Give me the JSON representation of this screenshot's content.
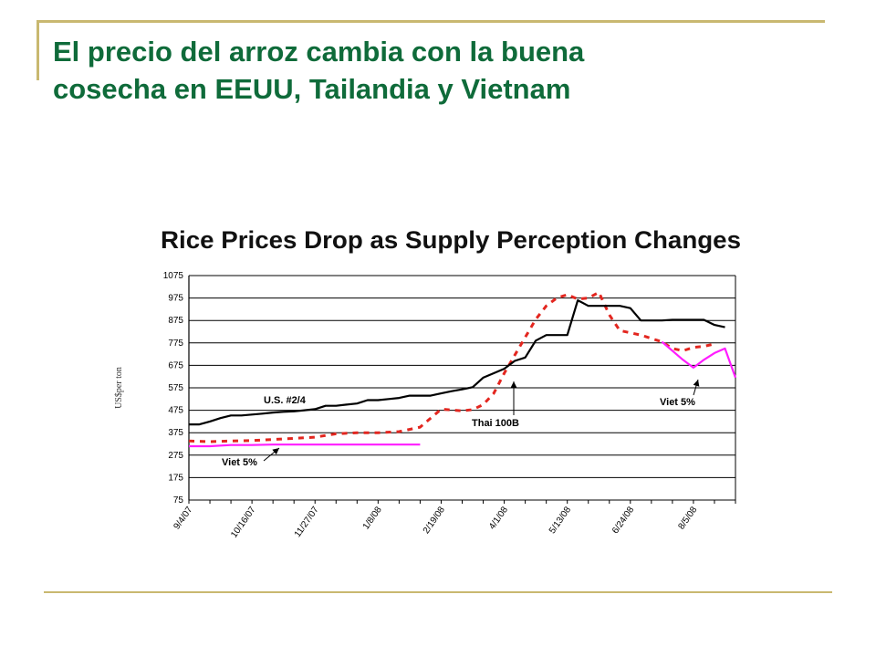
{
  "slide": {
    "title_line1": "El precio del arroz cambia con la buena",
    "title_line2": "cosecha en EEUU, Tailandia y Vietnam"
  },
  "chart_data": {
    "type": "line",
    "title": "Rice Prices Drop as Supply Perception Changes",
    "ylabel": "US$per ton",
    "ylim": [
      75,
      1075
    ],
    "yticks": [
      75,
      175,
      275,
      375,
      475,
      575,
      675,
      775,
      875,
      975,
      1075
    ],
    "xlim": [
      "2007-09-04",
      "2008-09-02"
    ],
    "xticks": [
      "9/4/07",
      "10/16/07",
      "11/27/07",
      "1/8/08",
      "2/19/08",
      "4/1/08",
      "5/13/08",
      "6/24/08",
      "8/5/08"
    ],
    "xtick_dates": [
      "2007-09-04",
      "2007-10-16",
      "2007-11-27",
      "2008-01-08",
      "2008-02-19",
      "2008-04-01",
      "2008-05-13",
      "2008-06-24",
      "2008-08-05"
    ],
    "grid": "horizontal",
    "series": [
      {
        "name": "U.S. #2/4",
        "color": "#000000",
        "style": "solid",
        "points": [
          [
            "2007-09-04",
            412
          ],
          [
            "2007-09-11",
            412
          ],
          [
            "2007-09-18",
            425
          ],
          [
            "2007-09-25",
            440
          ],
          [
            "2007-10-02",
            452
          ],
          [
            "2007-10-09",
            452
          ],
          [
            "2007-10-16",
            456
          ],
          [
            "2007-10-23",
            460
          ],
          [
            "2007-10-30",
            465
          ],
          [
            "2007-11-06",
            468
          ],
          [
            "2007-11-13",
            470
          ],
          [
            "2007-11-20",
            475
          ],
          [
            "2007-11-27",
            480
          ],
          [
            "2007-12-04",
            495
          ],
          [
            "2007-12-11",
            495
          ],
          [
            "2007-12-18",
            500
          ],
          [
            "2007-12-25",
            505
          ],
          [
            "2008-01-01",
            520
          ],
          [
            "2008-01-08",
            520
          ],
          [
            "2008-01-15",
            525
          ],
          [
            "2008-01-22",
            530
          ],
          [
            "2008-01-29",
            540
          ],
          [
            "2008-02-05",
            540
          ],
          [
            "2008-02-12",
            540
          ],
          [
            "2008-02-19",
            550
          ],
          [
            "2008-02-26",
            560
          ],
          [
            "2008-03-04",
            568
          ],
          [
            "2008-03-11",
            578
          ],
          [
            "2008-03-18",
            620
          ],
          [
            "2008-03-25",
            640
          ],
          [
            "2008-04-01",
            660
          ],
          [
            "2008-04-08",
            695
          ],
          [
            "2008-04-15",
            710
          ],
          [
            "2008-04-22",
            785
          ],
          [
            "2008-04-29",
            810
          ],
          [
            "2008-05-06",
            810
          ],
          [
            "2008-05-13",
            810
          ],
          [
            "2008-05-20",
            965
          ],
          [
            "2008-05-27",
            940
          ],
          [
            "2008-06-03",
            940
          ],
          [
            "2008-06-10",
            940
          ],
          [
            "2008-06-17",
            940
          ],
          [
            "2008-06-24",
            930
          ],
          [
            "2008-07-01",
            875
          ],
          [
            "2008-07-08",
            875
          ],
          [
            "2008-07-15",
            875
          ],
          [
            "2008-07-22",
            878
          ],
          [
            "2008-07-29",
            878
          ],
          [
            "2008-08-05",
            878
          ],
          [
            "2008-08-12",
            878
          ],
          [
            "2008-08-19",
            855
          ],
          [
            "2008-08-26",
            845
          ]
        ]
      },
      {
        "name": "Thai 100B",
        "color": "#e3261f",
        "style": "dashed",
        "points": [
          [
            "2007-09-04",
            338
          ],
          [
            "2007-09-18",
            335
          ],
          [
            "2007-10-02",
            338
          ],
          [
            "2007-10-16",
            340
          ],
          [
            "2007-10-30",
            345
          ],
          [
            "2007-11-13",
            350
          ],
          [
            "2007-11-27",
            355
          ],
          [
            "2007-12-11",
            370
          ],
          [
            "2007-12-25",
            375
          ],
          [
            "2008-01-08",
            375
          ],
          [
            "2008-01-22",
            380
          ],
          [
            "2008-02-05",
            400
          ],
          [
            "2008-02-19",
            480
          ],
          [
            "2008-03-04",
            472
          ],
          [
            "2008-03-11",
            478
          ],
          [
            "2008-03-18",
            500
          ],
          [
            "2008-03-25",
            550
          ],
          [
            "2008-04-01",
            640
          ],
          [
            "2008-04-08",
            720
          ],
          [
            "2008-04-15",
            800
          ],
          [
            "2008-04-22",
            880
          ],
          [
            "2008-04-29",
            940
          ],
          [
            "2008-05-06",
            975
          ],
          [
            "2008-05-13",
            990
          ],
          [
            "2008-05-20",
            970
          ],
          [
            "2008-05-27",
            975
          ],
          [
            "2008-06-03",
            1000
          ],
          [
            "2008-06-10",
            900
          ],
          [
            "2008-06-17",
            830
          ],
          [
            "2008-06-24",
            820
          ],
          [
            "2008-07-01",
            810
          ],
          [
            "2008-07-08",
            795
          ],
          [
            "2008-07-15",
            780
          ],
          [
            "2008-07-22",
            750
          ],
          [
            "2008-07-29",
            740
          ],
          [
            "2008-08-05",
            755
          ],
          [
            "2008-08-12",
            760
          ],
          [
            "2008-08-19",
            770
          ]
        ]
      },
      {
        "name": "Viet 5%",
        "color": "#ff1cff",
        "style": "solid",
        "points": [
          [
            "2007-09-04",
            315
          ],
          [
            "2007-09-18",
            315
          ],
          [
            "2007-10-02",
            320
          ],
          [
            "2007-10-16",
            320
          ],
          [
            "2007-10-30",
            322
          ],
          [
            "2007-11-13",
            322
          ],
          [
            "2007-11-27",
            322
          ],
          [
            "2007-12-11",
            322
          ],
          [
            "2007-12-25",
            322
          ],
          [
            "2008-01-08",
            322
          ],
          [
            "2008-01-22",
            322
          ],
          [
            "2008-02-05",
            322
          ]
        ],
        "points_segment2": [
          [
            "2008-07-15",
            780
          ],
          [
            "2008-07-22",
            740
          ],
          [
            "2008-07-29",
            700
          ],
          [
            "2008-08-05",
            665
          ],
          [
            "2008-08-12",
            700
          ],
          [
            "2008-08-19",
            730
          ],
          [
            "2008-08-26",
            750
          ],
          [
            "2008-09-02",
            620
          ]
        ]
      }
    ],
    "annotations": [
      {
        "text": "U.S. #2/4",
        "series": "U.S. #2/4"
      },
      {
        "text": "Thai 100B",
        "series": "Thai 100B",
        "arrow": true
      },
      {
        "text": "Viet 5%",
        "series": "Viet 5%",
        "arrow": true,
        "position": "lower-left"
      },
      {
        "text": "Viet 5%",
        "series": "Viet 5%",
        "arrow": true,
        "position": "right"
      }
    ]
  }
}
